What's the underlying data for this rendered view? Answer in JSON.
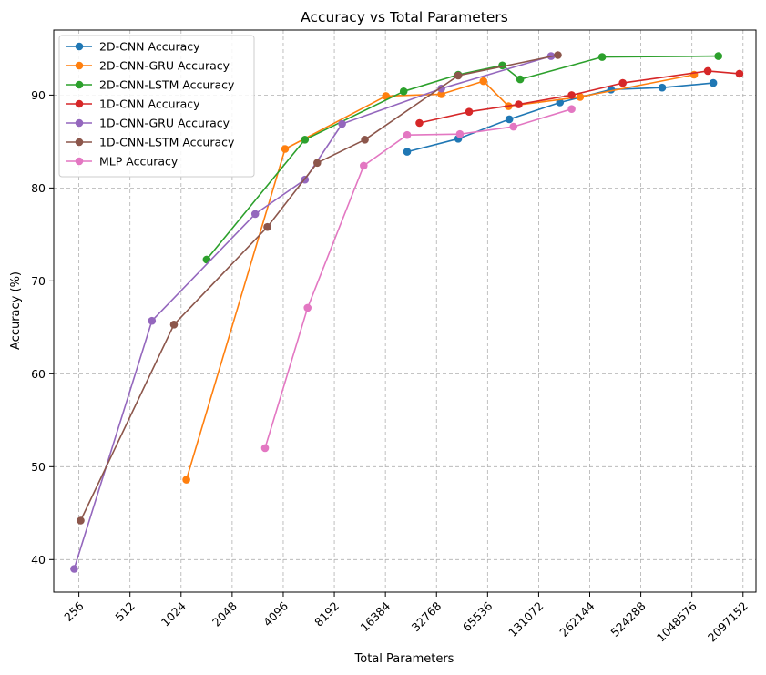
{
  "chart_data": {
    "type": "line",
    "title": "Accuracy vs Total Parameters",
    "xlabel": "Total Parameters",
    "ylabel": "Accuracy (%)",
    "xscale": "log2",
    "xticks": [
      256,
      512,
      1024,
      2048,
      4096,
      8192,
      16384,
      32768,
      65536,
      131072,
      262144,
      524288,
      1048576,
      2097152
    ],
    "xtick_labels": [
      "256",
      "512",
      "1024",
      "2048",
      "4096",
      "8192",
      "16384",
      "32768",
      "65536",
      "131072",
      "262144",
      "524288",
      "1048576",
      "2097152"
    ],
    "yticks": [
      40,
      50,
      60,
      70,
      80,
      90
    ],
    "ytick_labels": [
      "40",
      "50",
      "60",
      "70",
      "80",
      "90"
    ],
    "xlim": [
      182,
      2500000
    ],
    "ylim": [
      36.5,
      97
    ],
    "grid": true,
    "legend_position": "top-left",
    "series": [
      {
        "name": "2D-CNN Accuracy",
        "color": "#1f77b4",
        "x": [
          22000,
          44000,
          88000,
          175000,
          350000,
          700000,
          1400000
        ],
        "y": [
          83.9,
          85.3,
          87.4,
          89.2,
          90.6,
          90.8,
          91.3
        ]
      },
      {
        "name": "2D-CNN-GRU Accuracy",
        "color": "#ff7f0e",
        "x": [
          1100,
          4200,
          16500,
          35000,
          62000,
          87000,
          230000,
          1080000
        ],
        "y": [
          48.6,
          84.2,
          89.9,
          90.1,
          91.5,
          88.8,
          89.8,
          92.2
        ]
      },
      {
        "name": "2D-CNN-LSTM Accuracy",
        "color": "#2ca02c",
        "x": [
          1450,
          5500,
          21000,
          44000,
          80000,
          102000,
          310000,
          1500000
        ],
        "y": [
          72.3,
          85.2,
          90.4,
          92.2,
          93.2,
          91.7,
          94.1,
          94.2
        ]
      },
      {
        "name": "1D-CNN Accuracy",
        "color": "#d62728",
        "x": [
          26000,
          51000,
          100000,
          205000,
          410000,
          1300000,
          2000000
        ],
        "y": [
          87.0,
          88.2,
          89.0,
          90.0,
          91.3,
          92.6,
          92.3
        ]
      },
      {
        "name": "1D-CNN-GRU Accuracy",
        "color": "#9467bd",
        "x": [
          240,
          690,
          2800,
          5500,
          9100,
          35000,
          155000
        ],
        "y": [
          39.0,
          65.7,
          77.2,
          80.9,
          86.9,
          90.7,
          94.2
        ]
      },
      {
        "name": "1D-CNN-LSTM Accuracy",
        "color": "#8c564b",
        "x": [
          262,
          930,
          3300,
          6500,
          12400,
          44000,
          170000
        ],
        "y": [
          44.2,
          65.3,
          75.8,
          82.7,
          85.2,
          92.1,
          94.3
        ]
      },
      {
        "name": "MLP Accuracy",
        "color": "#e377c2",
        "x": [
          3200,
          5700,
          12200,
          22000,
          45000,
          93000,
          205000
        ],
        "y": [
          52.0,
          67.1,
          82.4,
          85.7,
          85.8,
          86.6,
          88.5
        ]
      }
    ]
  }
}
